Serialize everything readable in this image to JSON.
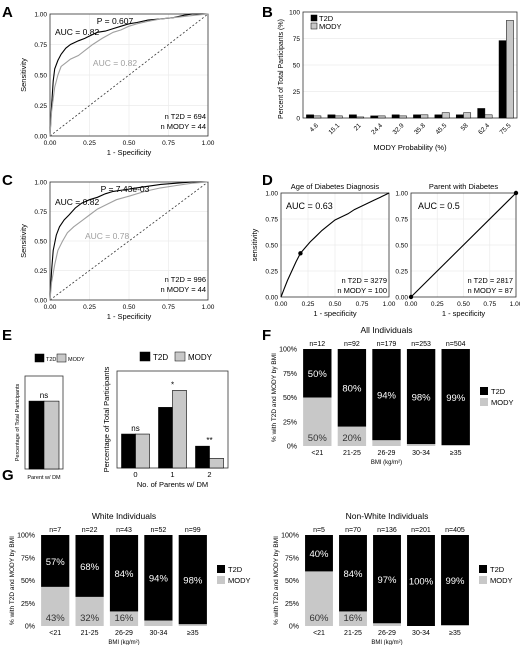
{
  "panels": {
    "A": "A",
    "B": "B",
    "C": "C",
    "D": "D",
    "E": "E",
    "F": "F",
    "G": "G"
  },
  "colors": {
    "t2d": "#000000",
    "mody": "#c8c8c8",
    "gray_curve": "#a0a0a0",
    "grid": "#ebebeb"
  },
  "chart_data": [
    {
      "id": "A",
      "type": "line",
      "xlabel": "1 - Specificity",
      "ylabel": "Sensitivity",
      "xticks": [
        "0.00",
        "0.25",
        "0.50",
        "0.75",
        "1.00"
      ],
      "yticks": [
        "0.00",
        "0.25",
        "0.50",
        "0.75",
        "1.00"
      ],
      "xlim": [
        0,
        1
      ],
      "ylim": [
        0,
        1
      ],
      "annotations": {
        "p": "P = 0.607",
        "auc_black": "AUC = 0.82",
        "auc_gray": "AUC = 0.82",
        "n_t2d": "n T2D = 694",
        "n_mody": "n MODY = 44"
      },
      "series": [
        {
          "color": "black",
          "x": [
            0,
            0.01,
            0.02,
            0.03,
            0.05,
            0.07,
            0.1,
            0.13,
            0.18,
            0.22,
            0.25,
            0.3,
            0.35,
            0.4,
            0.45,
            0.5,
            0.55,
            0.62,
            0.7,
            0.78,
            0.85,
            0.9,
            0.95,
            1
          ],
          "y": [
            0,
            0.25,
            0.45,
            0.55,
            0.62,
            0.67,
            0.72,
            0.75,
            0.78,
            0.8,
            0.82,
            0.85,
            0.86,
            0.88,
            0.9,
            0.92,
            0.93,
            0.95,
            0.96,
            0.97,
            0.99,
            1,
            1,
            1
          ]
        },
        {
          "color": "gray",
          "x": [
            0,
            0.01,
            0.03,
            0.05,
            0.07,
            0.1,
            0.13,
            0.18,
            0.22,
            0.27,
            0.33,
            0.4,
            0.45,
            0.5,
            0.55,
            0.62,
            0.7,
            0.78,
            0.85,
            0.92,
            1
          ],
          "y": [
            0,
            0.2,
            0.4,
            0.5,
            0.57,
            0.6,
            0.63,
            0.66,
            0.7,
            0.75,
            0.8,
            0.85,
            0.87,
            0.9,
            0.92,
            0.94,
            0.96,
            0.97,
            0.98,
            0.99,
            1
          ]
        }
      ]
    },
    {
      "id": "B",
      "type": "bar",
      "xlabel": "MODY Probability (%)",
      "ylabel": "Percent of Total Participants (%)",
      "categories": [
        "4.6",
        "15.1",
        "21",
        "24.4",
        "32.9",
        "35.8",
        "45.5",
        "58",
        "62.4",
        "75.5"
      ],
      "yticks": [
        "0",
        "25",
        "50",
        "75",
        "100"
      ],
      "ylim": [
        0,
        100
      ],
      "legend": [
        "T2D",
        "MODY"
      ],
      "legend_position": "top-left",
      "series": [
        {
          "name": "T2D",
          "values": [
            3,
            3,
            3,
            2,
            3,
            3,
            3,
            3,
            9,
            73
          ]
        },
        {
          "name": "MODY",
          "values": [
            2,
            2,
            1,
            2,
            2,
            3,
            5,
            5,
            3,
            92
          ]
        }
      ]
    },
    {
      "id": "C",
      "type": "line",
      "xlabel": "1 - Specificity",
      "ylabel": "Sensitivity",
      "xticks": [
        "0.00",
        "0.25",
        "0.50",
        "0.75",
        "1.00"
      ],
      "yticks": [
        "0.00",
        "0.25",
        "0.50",
        "0.75",
        "1.00"
      ],
      "xlim": [
        0,
        1
      ],
      "ylim": [
        0,
        1
      ],
      "annotations": {
        "p": "P = 7.43e-03",
        "auc_black": "AUC = 0.82",
        "auc_gray": "AUC = 0.78",
        "n_t2d": "n T2D = 996",
        "n_mody": "n MODY = 44"
      },
      "series": [
        {
          "color": "black",
          "x": [
            0,
            0.01,
            0.02,
            0.04,
            0.06,
            0.09,
            0.12,
            0.16,
            0.2,
            0.25,
            0.3,
            0.35,
            0.4,
            0.5,
            0.6,
            0.7,
            0.8,
            0.9,
            1
          ],
          "y": [
            0,
            0.25,
            0.42,
            0.55,
            0.62,
            0.68,
            0.72,
            0.78,
            0.82,
            0.85,
            0.87,
            0.9,
            0.92,
            0.94,
            0.96,
            0.98,
            0.99,
            1,
            1
          ]
        },
        {
          "color": "gray",
          "x": [
            0,
            0.01,
            0.03,
            0.05,
            0.08,
            0.11,
            0.15,
            0.2,
            0.25,
            0.3,
            0.36,
            0.42,
            0.5,
            0.6,
            0.7,
            0.8,
            0.9,
            1
          ],
          "y": [
            0,
            0.15,
            0.3,
            0.42,
            0.5,
            0.57,
            0.62,
            0.67,
            0.72,
            0.77,
            0.81,
            0.85,
            0.88,
            0.92,
            0.95,
            0.97,
            0.99,
            1
          ]
        }
      ]
    },
    {
      "id": "D1",
      "type": "line",
      "title": "Age of Diabetes Diagnosis",
      "xlabel": "1 - specificity",
      "ylabel": "sensitivity",
      "xticks": [
        "0.00",
        "0.25",
        "0.50",
        "0.75",
        "1.00"
      ],
      "yticks": [
        "0.00",
        "0.25",
        "0.50",
        "0.75",
        "1.00"
      ],
      "xlim": [
        0,
        1
      ],
      "ylim": [
        0,
        1
      ],
      "annotations": {
        "auc": "AUC = 0.63",
        "n_t2d": "n T2D = 3279",
        "n_mody": "n MODY = 100"
      },
      "point": {
        "x": 0.18,
        "y": 0.42
      },
      "series": [
        {
          "color": "black",
          "x": [
            0,
            0.03,
            0.06,
            0.1,
            0.14,
            0.18,
            0.22,
            0.27,
            0.32,
            0.38,
            0.44,
            0.5,
            0.56,
            0.62,
            0.68,
            0.74,
            0.8,
            0.86,
            0.92,
            0.96,
            1
          ],
          "y": [
            0,
            0.08,
            0.16,
            0.25,
            0.34,
            0.42,
            0.47,
            0.53,
            0.58,
            0.64,
            0.69,
            0.74,
            0.77,
            0.8,
            0.84,
            0.87,
            0.9,
            0.93,
            0.96,
            0.98,
            1
          ]
        }
      ]
    },
    {
      "id": "D2",
      "type": "line",
      "title": "Parent with Diabetes",
      "xlabel": "1 - specificity",
      "ylabel": "",
      "xticks": [
        "0.00",
        "0.25",
        "0.50",
        "0.75",
        "1.00"
      ],
      "yticks": [
        "0.00",
        "0.25",
        "0.50",
        "0.75",
        "1.00"
      ],
      "xlim": [
        0,
        1
      ],
      "ylim": [
        0,
        1
      ],
      "annotations": {
        "auc": "AUC = 0.5",
        "n_t2d": "n T2D = 2817",
        "n_mody": "n MODY = 87"
      },
      "points": [
        {
          "x": 0,
          "y": 0
        },
        {
          "x": 1,
          "y": 1
        }
      ],
      "series": [
        {
          "color": "black",
          "x": [
            0,
            1
          ],
          "y": [
            0,
            1
          ]
        }
      ]
    },
    {
      "id": "E1",
      "type": "bar",
      "ylabel": "Percentage of Total Participants",
      "xlabel": "Parent w/ DM",
      "legend": [
        "T2D",
        "MODY"
      ],
      "ylim": [
        0,
        100
      ],
      "significance": "ns",
      "series": [
        {
          "name": "T2D",
          "values": [
            73
          ]
        },
        {
          "name": "MODY",
          "values": [
            73
          ]
        }
      ]
    },
    {
      "id": "E2",
      "type": "bar",
      "ylabel": "Percentage of Total Participants",
      "xlabel": "No. of Parents w/ DM",
      "categories": [
        "0",
        "1",
        "2"
      ],
      "legend": [
        "T2D",
        "MODY"
      ],
      "ylim": [
        0,
        80
      ],
      "significance": [
        "ns",
        "*",
        "**"
      ],
      "series": [
        {
          "name": "T2D",
          "values": [
            28,
            50,
            18
          ]
        },
        {
          "name": "MODY",
          "values": [
            28,
            64,
            8
          ]
        }
      ]
    },
    {
      "id": "F",
      "type": "bar",
      "title": "All Individuals",
      "ylabel": "% with T2D and MODY by BMI",
      "xlabel": "BMI (kg/m²)",
      "categories": [
        "<21",
        "21-25",
        "26-29",
        "30-34",
        "≥35"
      ],
      "n_labels": [
        "n=12",
        "n=92",
        "n=179",
        "n=253",
        "n=504"
      ],
      "yticks": [
        "0%",
        "25%",
        "50%",
        "75%",
        "100%"
      ],
      "legend": [
        "T2D",
        "MODY"
      ],
      "series": [
        {
          "name": "T2D",
          "values": [
            50,
            80,
            94,
            98,
            99
          ],
          "labels": [
            "50%",
            "80%",
            "94%",
            "98%",
            "99%"
          ]
        },
        {
          "name": "MODY",
          "values": [
            50,
            20,
            6,
            2,
            1
          ],
          "labels": [
            "50%",
            "20%",
            "",
            "",
            ""
          ]
        }
      ]
    },
    {
      "id": "G1",
      "type": "bar",
      "title": "White Individuals",
      "ylabel": "% with T2D and MODY by BMI",
      "xlabel": "BMI (kg/m²)",
      "categories": [
        "<21",
        "21-25",
        "26-29",
        "30-34",
        "≥35"
      ],
      "n_labels": [
        "n=7",
        "n=22",
        "n=43",
        "n=52",
        "n=99"
      ],
      "yticks": [
        "0%",
        "25%",
        "50%",
        "75%",
        "100%"
      ],
      "legend": [
        "T2D",
        "MODY"
      ],
      "series": [
        {
          "name": "T2D",
          "values": [
            57,
            68,
            84,
            94,
            98
          ],
          "labels": [
            "57%",
            "68%",
            "84%",
            "94%",
            "98%"
          ]
        },
        {
          "name": "MODY",
          "values": [
            43,
            32,
            16,
            6,
            2
          ],
          "labels": [
            "43%",
            "32%",
            "16%",
            "",
            ""
          ]
        }
      ]
    },
    {
      "id": "G2",
      "type": "bar",
      "title": "Non-White Individuals",
      "ylabel": "% with T2D and MODY by BMI",
      "xlabel": "BMI (kg/m²)",
      "categories": [
        "<21",
        "21-25",
        "26-29",
        "30-34",
        "≥35"
      ],
      "n_labels": [
        "n=5",
        "n=70",
        "n=136",
        "n=201",
        "n=405"
      ],
      "yticks": [
        "0%",
        "25%",
        "50%",
        "75%",
        "100%"
      ],
      "legend": [
        "T2D",
        "MODY"
      ],
      "series": [
        {
          "name": "T2D",
          "values": [
            40,
            84,
            97,
            100,
            99
          ],
          "labels": [
            "40%",
            "84%",
            "97%",
            "100%",
            "99%"
          ]
        },
        {
          "name": "MODY",
          "values": [
            60,
            16,
            3,
            0,
            1
          ],
          "labels": [
            "60%",
            "16%",
            "",
            "",
            ""
          ]
        }
      ]
    }
  ]
}
